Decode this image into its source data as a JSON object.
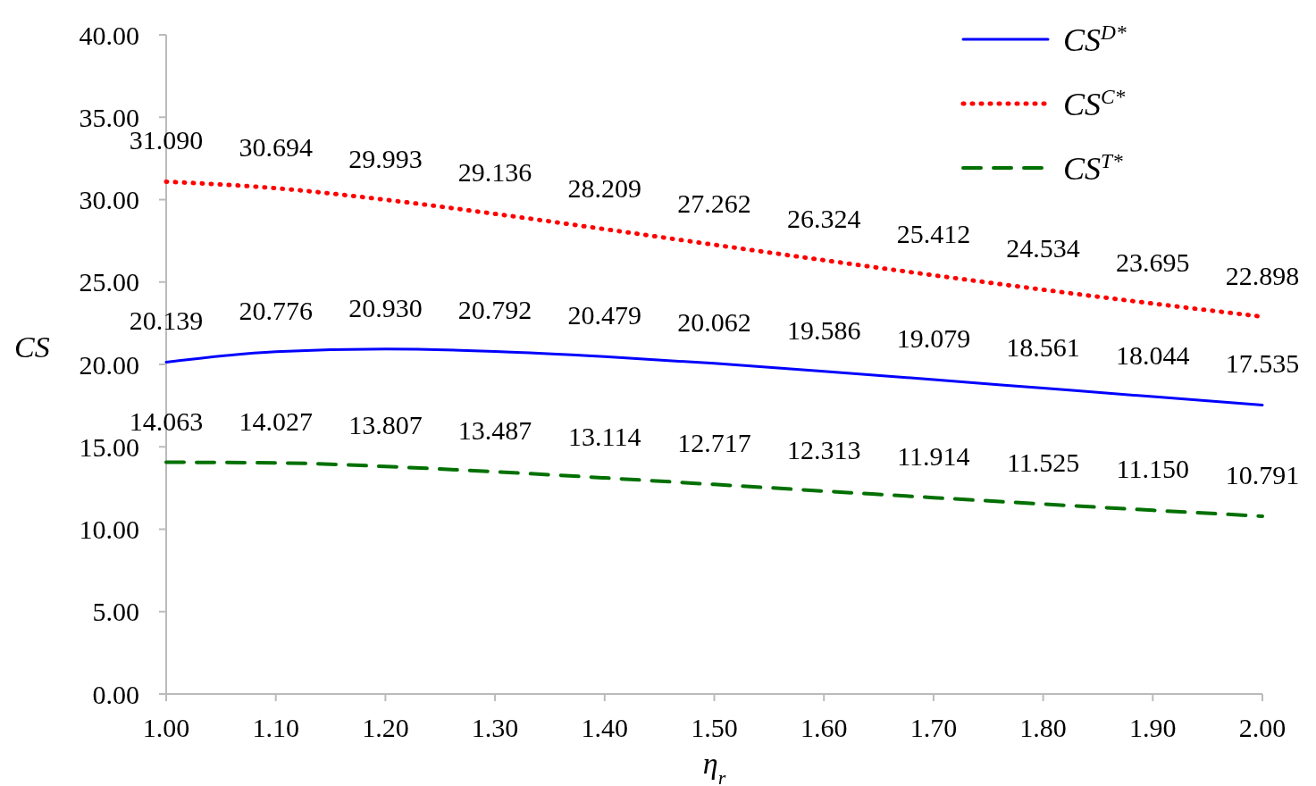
{
  "chart_data": {
    "type": "line",
    "xlabel": "η$_{r}$",
    "ylabel": "CS",
    "x": [
      1.0,
      1.1,
      1.2,
      1.3,
      1.4,
      1.5,
      1.6,
      1.7,
      1.8,
      1.9,
      2.0
    ],
    "xlim": [
      1.0,
      2.0
    ],
    "xticks": [
      {
        "value": 1.0,
        "label": "1.00"
      },
      {
        "value": 1.1,
        "label": "1.10"
      },
      {
        "value": 1.2,
        "label": "1.20"
      },
      {
        "value": 1.3,
        "label": "1.30"
      },
      {
        "value": 1.4,
        "label": "1.40"
      },
      {
        "value": 1.5,
        "label": "1.50"
      },
      {
        "value": 1.6,
        "label": "1.60"
      },
      {
        "value": 1.7,
        "label": "1.70"
      },
      {
        "value": 1.8,
        "label": "1.80"
      },
      {
        "value": 1.9,
        "label": "1.90"
      },
      {
        "value": 2.0,
        "label": "2.00"
      }
    ],
    "ylim": [
      0,
      40
    ],
    "yticks": [
      {
        "value": 0,
        "label": "0.00"
      },
      {
        "value": 5,
        "label": "5.00"
      },
      {
        "value": 10,
        "label": "10.00"
      },
      {
        "value": 15,
        "label": "15.00"
      },
      {
        "value": 20,
        "label": "20.00"
      },
      {
        "value": 25,
        "label": "25.00"
      },
      {
        "value": 30,
        "label": "30.00"
      },
      {
        "value": 35,
        "label": "35.00"
      },
      {
        "value": 40,
        "label": "40.00"
      }
    ],
    "grid": false,
    "legend": "top right",
    "marker": "none",
    "series": [
      {
        "name": "CS$^{D*}$",
        "color": "#0000ff",
        "line_style": "solid",
        "values": [
          20.139,
          20.776,
          20.93,
          20.792,
          20.479,
          20.062,
          19.586,
          19.079,
          18.561,
          18.044,
          17.535
        ],
        "value_labels": [
          "20.139",
          "20.776",
          "20.930",
          "20.792",
          "20.479",
          "20.062",
          "19.586",
          "19.079",
          "18.561",
          "18.044",
          "17.535"
        ]
      },
      {
        "name": "CS$^{C*}$",
        "color": "#ff0000",
        "line_style": "dotted",
        "values": [
          31.09,
          30.694,
          29.993,
          29.136,
          28.209,
          27.262,
          26.324,
          25.412,
          24.534,
          23.695,
          22.898
        ],
        "value_labels": [
          "31.090",
          "30.694",
          "29.993",
          "29.136",
          "28.209",
          "27.262",
          "26.324",
          "25.412",
          "24.534",
          "23.695",
          "22.898"
        ]
      },
      {
        "name": "CS$^{T*}$",
        "color": "#007000",
        "line_style": "dashed",
        "values": [
          14.063,
          14.027,
          13.807,
          13.487,
          13.114,
          12.717,
          12.313,
          11.914,
          11.525,
          11.15,
          10.791
        ],
        "value_labels": [
          "14.063",
          "14.027",
          "13.807",
          "13.487",
          "13.114",
          "12.717",
          "12.313",
          "11.914",
          "11.525",
          "11.150",
          "10.791"
        ]
      }
    ]
  }
}
